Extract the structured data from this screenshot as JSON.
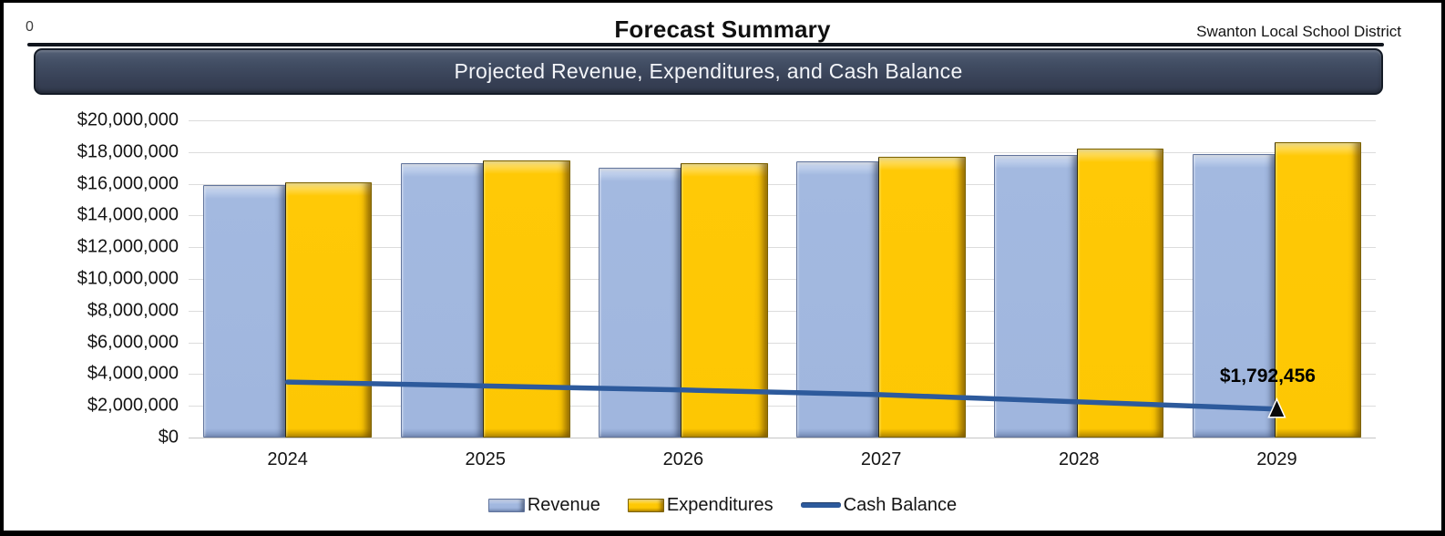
{
  "page": {
    "corner_label": "0",
    "title": "Forecast Summary",
    "district": "Swanton Local School District"
  },
  "banner": {
    "text": "Projected Revenue, Expenditures, and Cash Balance",
    "background": "#3b4659",
    "text_color": "#f3f5f9"
  },
  "chart_data": {
    "type": "bar",
    "title": "Projected Revenue, Expenditures, and Cash Balance",
    "categories": [
      "2024",
      "2025",
      "2026",
      "2027",
      "2028",
      "2029"
    ],
    "series": [
      {
        "name": "Revenue",
        "type": "bar",
        "color": "#a3b9e0",
        "values": [
          15900000,
          17300000,
          17000000,
          17400000,
          17800000,
          17900000
        ]
      },
      {
        "name": "Expenditures",
        "type": "bar",
        "color": "#ffc906",
        "values": [
          16100000,
          17450000,
          17300000,
          17700000,
          18200000,
          18600000
        ]
      },
      {
        "name": "Cash Balance",
        "type": "line",
        "color": "#2d5a9c",
        "values": [
          3500000,
          3250000,
          3000000,
          2700000,
          2250000,
          1792456
        ]
      }
    ],
    "ylim": [
      0,
      20000000
    ],
    "ytick_step": 2000000,
    "ytick_labels": [
      "$0",
      "$2,000,000",
      "$4,000,000",
      "$6,000,000",
      "$8,000,000",
      "$10,000,000",
      "$12,000,000",
      "$14,000,000",
      "$16,000,000",
      "$18,000,000",
      "$20,000,000"
    ],
    "grid": true,
    "legend_position": "bottom",
    "annotation": {
      "text": "$1,792,456",
      "series": "Cash Balance",
      "category": "2029",
      "value": 1792456,
      "marker": "black-triangle"
    }
  },
  "legend": {
    "items": [
      {
        "label": "Revenue",
        "swatch": "bar",
        "color": "#a3b9e0"
      },
      {
        "label": "Expenditures",
        "swatch": "bar",
        "color": "#ffc906"
      },
      {
        "label": "Cash Balance",
        "swatch": "line",
        "color": "#2d5a9c"
      }
    ]
  }
}
